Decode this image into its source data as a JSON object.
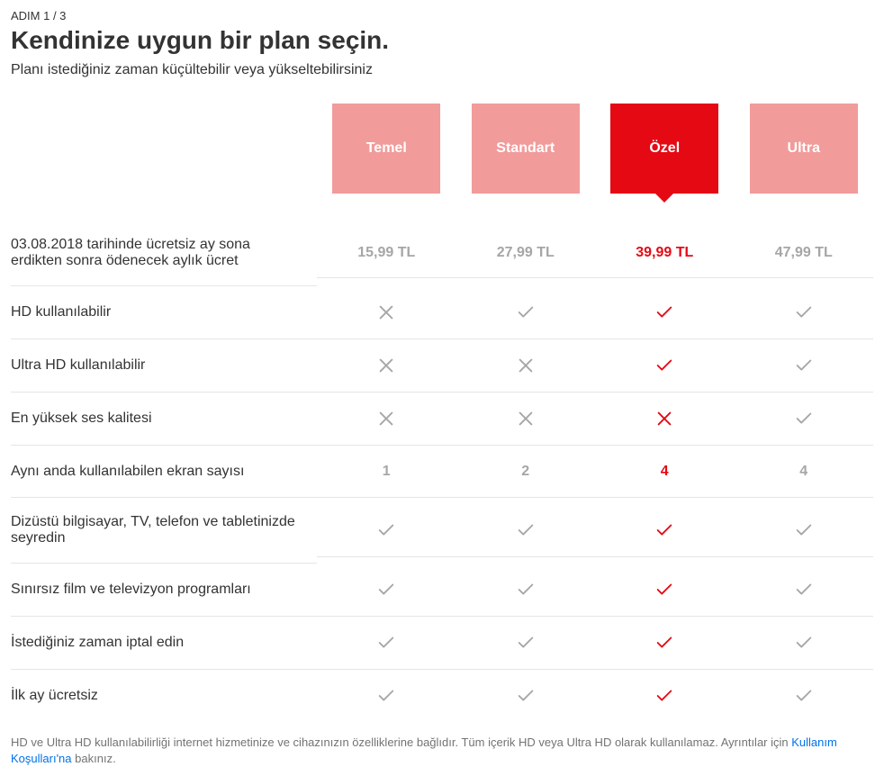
{
  "step_indicator": "ADIM 1 / 3",
  "title": "Kendinize uygun bir plan seçin.",
  "subtitle": "Planı istediğiniz zaman küçültebilir veya yükseltebilirsiniz",
  "plans": [
    {
      "name": "Temel",
      "active": false
    },
    {
      "name": "Standart",
      "active": false
    },
    {
      "name": "Özel",
      "active": true
    },
    {
      "name": "Ultra",
      "active": false
    }
  ],
  "rows": [
    {
      "label": "03.08.2018 tarihinde ücretsiz ay sona erdikten sonra ödenecek aylık ücret",
      "type": "text",
      "values": [
        "15,99 TL",
        "27,99 TL",
        "39,99 TL",
        "47,99 TL"
      ]
    },
    {
      "label": "HD kullanılabilir",
      "type": "bool",
      "values": [
        "no",
        "yes",
        "yes",
        "yes"
      ]
    },
    {
      "label": "Ultra HD kullanılabilir",
      "type": "bool",
      "values": [
        "no",
        "no",
        "yes",
        "yes"
      ]
    },
    {
      "label": "En yüksek ses kalitesi",
      "type": "bool",
      "values": [
        "no",
        "no",
        "no",
        "yes"
      ]
    },
    {
      "label": "Aynı anda kullanılabilen ekran sayısı",
      "type": "text",
      "values": [
        "1",
        "2",
        "4",
        "4"
      ]
    },
    {
      "label": "Dizüstü bilgisayar, TV, telefon ve tabletinizde seyredin",
      "type": "bool",
      "values": [
        "yes",
        "yes",
        "yes",
        "yes"
      ]
    },
    {
      "label": "Sınırsız film ve televizyon programları",
      "type": "bool",
      "values": [
        "yes",
        "yes",
        "yes",
        "yes"
      ]
    },
    {
      "label": "İstediğiniz zaman iptal edin",
      "type": "bool",
      "values": [
        "yes",
        "yes",
        "yes",
        "yes"
      ]
    },
    {
      "label": "İlk ay ücretsiz",
      "type": "bool",
      "values": [
        "yes",
        "yes",
        "yes",
        "yes"
      ]
    }
  ],
  "footnote": {
    "prefix": "HD ve Ultra HD kullanılabilirliği internet hizmetinize ve cihazınızın özelliklerine bağlıdır. Tüm içerik HD veya Ultra HD olarak kullanılamaz. Ayrıntılar için ",
    "link_text": "Kullanım Koşulları'na",
    "suffix": " bakınız."
  },
  "colors": {
    "brand_red": "#e50914",
    "inactive_red": "#ef8a8a",
    "muted_text": "#a6a6a6",
    "link": "#0071eb",
    "border": "#e5e5e5"
  }
}
